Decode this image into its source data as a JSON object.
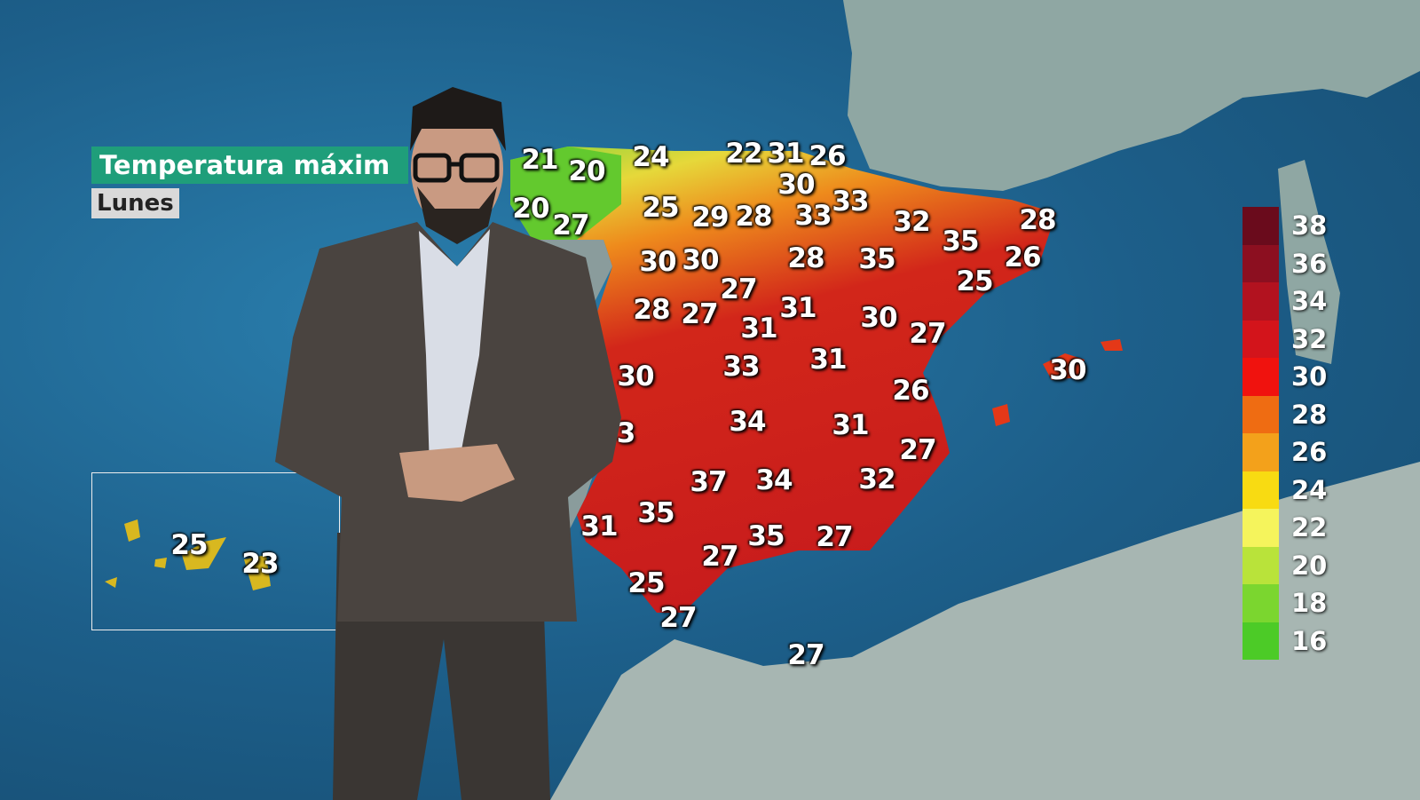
{
  "overlay": {
    "title": "Temperatura máxim",
    "day": "Lunes",
    "title_color": "#1f9e7a"
  },
  "legend": {
    "values": [
      "38",
      "36",
      "34",
      "32",
      "30",
      "28",
      "26",
      "24",
      "22",
      "20",
      "18",
      "16"
    ],
    "colors": [
      "#6a0b1c",
      "#8c0f20",
      "#b2121f",
      "#d3141b",
      "#f0120e",
      "#ef6c12",
      "#f3a11b",
      "#f8db12",
      "#f5f45c",
      "#b9e33a",
      "#7bd62f",
      "#4ccb27"
    ]
  },
  "temperatures": [
    "21",
    "20",
    "24",
    "22",
    "31",
    "26",
    "30",
    "20",
    "27",
    "25",
    "29",
    "28",
    "33",
    "33",
    "32",
    "35",
    "28",
    "26",
    "30",
    "30",
    "28",
    "35",
    "25",
    "27",
    "31",
    "28",
    "27",
    "31",
    "30",
    "27",
    "30",
    "30",
    "33",
    "31",
    "26",
    "3",
    "34",
    "31",
    "27",
    "37",
    "34",
    "32",
    "31",
    "35",
    "35",
    "27",
    "27",
    "25",
    "27",
    "27"
  ],
  "canarias_temperatures": [
    "25",
    "23"
  ]
}
